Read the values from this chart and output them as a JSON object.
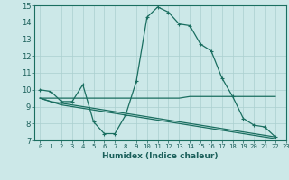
{
  "xlabel": "Humidex (Indice chaleur)",
  "x_values": [
    0,
    1,
    2,
    3,
    4,
    5,
    6,
    7,
    8,
    9,
    10,
    11,
    12,
    13,
    14,
    15,
    16,
    17,
    18,
    19,
    20,
    21,
    22,
    23
  ],
  "series": [
    {
      "y": [
        10.0,
        9.9,
        9.3,
        9.3,
        10.3,
        8.1,
        7.4,
        7.4,
        8.5,
        10.5,
        14.3,
        14.9,
        14.6,
        13.9,
        13.8,
        12.7,
        12.3,
        10.7,
        9.6,
        8.3,
        7.9,
        7.8,
        7.2,
        null
      ],
      "marker": true
    },
    {
      "y": [
        9.5,
        9.5,
        9.5,
        9.5,
        9.5,
        9.5,
        9.5,
        9.5,
        9.5,
        9.5,
        9.5,
        9.5,
        9.5,
        9.5,
        9.6,
        9.6,
        9.6,
        9.6,
        9.6,
        9.6,
        9.6,
        9.6,
        9.6,
        null
      ],
      "marker": false
    },
    {
      "y": [
        9.5,
        9.3,
        9.2,
        9.1,
        9.0,
        8.9,
        8.8,
        8.7,
        8.6,
        8.5,
        8.4,
        8.3,
        8.2,
        8.1,
        8.0,
        7.9,
        7.8,
        7.7,
        7.6,
        7.5,
        7.4,
        7.3,
        7.2,
        null
      ],
      "marker": false
    },
    {
      "y": [
        9.5,
        9.3,
        9.1,
        9.0,
        8.9,
        8.8,
        8.7,
        8.6,
        8.5,
        8.4,
        8.3,
        8.2,
        8.1,
        8.0,
        7.9,
        7.8,
        7.7,
        7.6,
        7.5,
        7.4,
        7.3,
        7.2,
        7.1,
        null
      ],
      "marker": false
    }
  ],
  "xlim": [
    -0.5,
    23.0
  ],
  "ylim": [
    7,
    15
  ],
  "yticks": [
    7,
    8,
    9,
    10,
    11,
    12,
    13,
    14,
    15
  ],
  "xtick_labels": [
    "0",
    "1",
    "2",
    "3",
    "4",
    "5",
    "6",
    "7",
    "8",
    "9",
    "10",
    "11",
    "12",
    "13",
    "14",
    "15",
    "16",
    "17",
    "18",
    "19",
    "20",
    "21",
    "22",
    "23"
  ],
  "bg_color": "#cce8e8",
  "grid_color": "#aacfcf",
  "line_color": "#1a6e60",
  "text_color": "#1a5f5a",
  "xlabel_fontsize": 6.5,
  "tick_fontsize": 5.2,
  "ytick_fontsize": 6.0
}
